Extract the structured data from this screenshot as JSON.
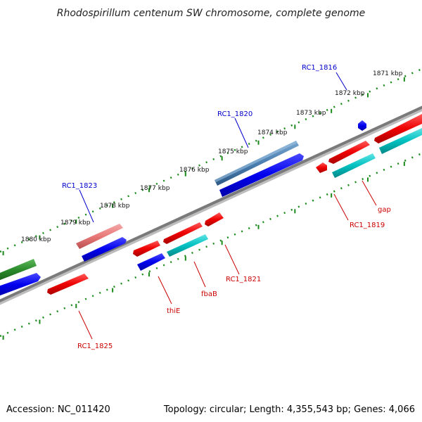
{
  "title": "Rhodospirillum centenum SW chromosome, complete genome",
  "footer": {
    "accession": "Accession: NC_011420",
    "topology": "Topology: circular; Length: 4,355,543 bp; Genes: 4,066"
  },
  "colors": {
    "forward_gene": "#0000ee",
    "reverse_gene": "#ee0000",
    "steelblue_gene": "#4a7fb0",
    "pink_gene": "#e87878",
    "cyan_gene": "#00c0c0",
    "green_gene": "#2a8a2a",
    "backbone": "#7a7a7a",
    "tick": "#1a8a1a",
    "forward_label": "#0000cc",
    "reverse_label": "#cc0000"
  },
  "ruler_labels": [
    "1871 kbp",
    "1872 kbp",
    "1873 kbp",
    "1874 kbp",
    "1875 kbp",
    "1876 kbp",
    "1877 kbp",
    "1878 kbp",
    "1879 kbp",
    "1880 kbp"
  ],
  "gene_labels": {
    "rc1_1816": "RC1_1816",
    "rc1_1820": "RC1_1820",
    "rc1_1823": "RC1_1823",
    "gap": "gap",
    "rc1_1819": "RC1_1819",
    "rc1_1821": "RC1_1821",
    "fbab": "fbaB",
    "thie": "thiE",
    "rc1_1825": "RC1_1825"
  }
}
